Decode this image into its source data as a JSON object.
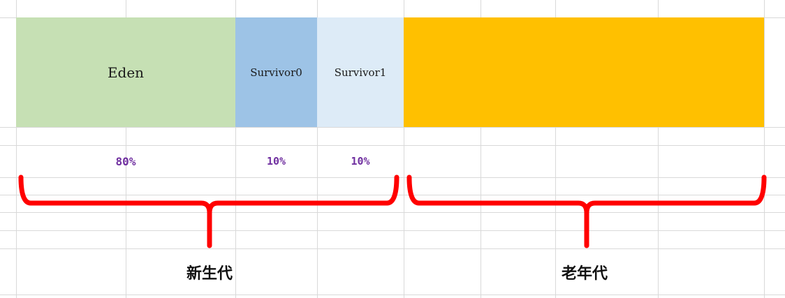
{
  "regions": {
    "eden": {
      "label": "Eden",
      "color": "#c6e0b4"
    },
    "survivor0": {
      "label": "Survivor0",
      "color": "#9dc3e6"
    },
    "survivor1": {
      "label": "Survivor1",
      "color": "#ddebf7"
    },
    "old": {
      "label": "",
      "color": "#ffc000"
    }
  },
  "percentages": {
    "eden": "80%",
    "survivor0": "10%",
    "survivor1": "10%",
    "color": "#7030a0"
  },
  "generations": {
    "young": "新生代",
    "old": "老年代"
  },
  "colors": {
    "gridline": "#d9d9d9",
    "brace": "#ff0000"
  }
}
